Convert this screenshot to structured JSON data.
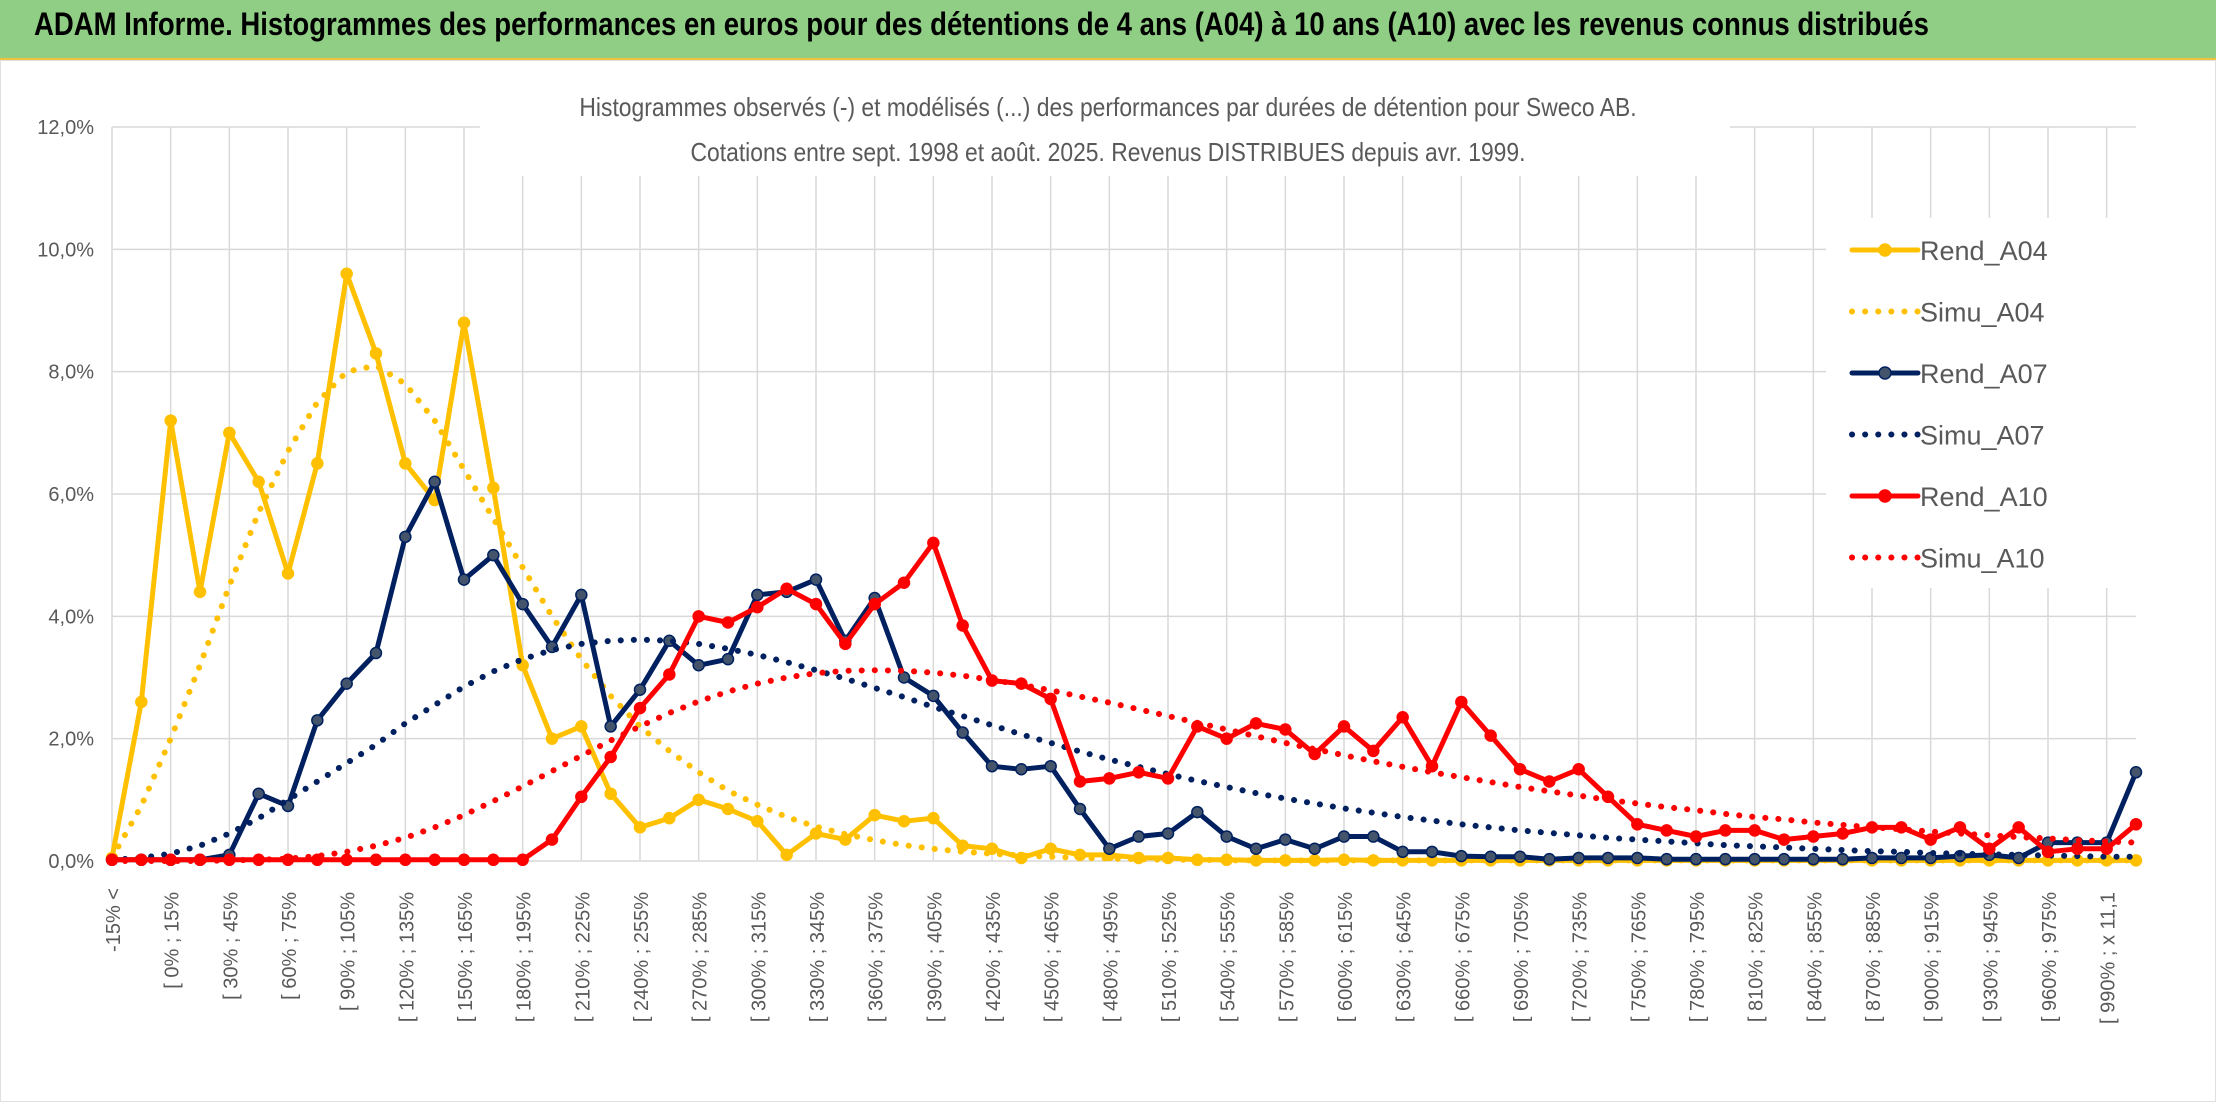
{
  "banner": {
    "title": "ADAM Informe. Histogrammes des performances en euros pour des détentions de 4 ans (A04) à 10 ans (A10) avec les revenus connus distribués"
  },
  "chart_data": {
    "type": "line",
    "title_lines": [
      "Histogrammes observés (-) et modélisés (...) des performances par durées de détention pour Sweco AB.",
      "Cotations entre sept. 1998 et août. 2025. Revenus DISTRIBUES depuis avr. 1999."
    ],
    "y_ticks": [
      "0,0%",
      "2,0%",
      "4,0%",
      "6,0%",
      "8,0%",
      "10,0%",
      "12,0%"
    ],
    "ylim": [
      0,
      12
    ],
    "grid": true,
    "legend_position": "right",
    "x_tick_labels": [
      "-15% <",
      "[ 0% ; 15%",
      "[ 30% ; 45%",
      "[ 60% ; 75%",
      "[ 90% ; 105%",
      "[ 120% ; 135%",
      "[ 150% ; 165%",
      "[ 180% ; 195%",
      "[ 210% ; 225%",
      "[ 240% ; 255%",
      "[ 270% ; 285%",
      "[ 300% ; 315%",
      "[ 330% ; 345%",
      "[ 360% ; 375%",
      "[ 390% ; 405%",
      "[ 420% ; 435%",
      "[ 450% ; 465%",
      "[ 480% ; 495%",
      "[ 510% ; 525%",
      "[ 540% ; 555%",
      "[ 570% ; 585%",
      "[ 600% ; 615%",
      "[ 630% ; 645%",
      "[ 660% ; 675%",
      "[ 690% ; 705%",
      "[ 720% ; 735%",
      "[ 750% ; 765%",
      "[ 780% ; 795%",
      "[ 810% ; 825%",
      "[ 840% ; 855%",
      "[ 870% ; 885%",
      "[ 900% ; 915%",
      "[ 930% ; 945%",
      "[ 960% ; 975%",
      "[ 990% ; x 11,1"
    ],
    "series": [
      {
        "name": "Rend_A04",
        "style": "solid",
        "color": "#FFC000",
        "values": [
          0.05,
          2.6,
          7.2,
          4.4,
          7.0,
          6.2,
          4.7,
          6.5,
          9.6,
          8.3,
          6.5,
          5.9,
          8.8,
          6.1,
          3.2,
          2.0,
          2.2,
          1.1,
          0.55,
          0.7,
          1.0,
          0.85,
          0.65,
          0.1,
          0.45,
          0.35,
          0.75,
          0.65,
          0.7,
          0.25,
          0.2,
          0.05,
          0.2,
          0.1,
          0.1,
          0.05,
          0.05,
          0.02,
          0.02,
          0.01,
          0.01,
          0.01,
          0.02,
          0.01,
          0.01,
          0.01,
          0.01,
          0.01,
          0.01,
          0.01,
          0.01,
          0.01,
          0.01,
          0.01,
          0.01,
          0.01,
          0.01,
          0.01,
          0.01,
          0.01,
          0.01,
          0.01,
          0.01,
          0.01,
          0.01,
          0.01,
          0.01,
          0.01,
          0.01,
          0.01
        ]
      },
      {
        "name": "Simu_A04",
        "style": "dotted",
        "color": "#FFC000",
        "values": [
          0.05,
          0.9,
          2.0,
          3.2,
          4.5,
          5.7,
          6.7,
          7.5,
          8.0,
          8.1,
          7.8,
          7.2,
          6.4,
          5.6,
          4.8,
          4.0,
          3.3,
          2.7,
          2.2,
          1.8,
          1.45,
          1.15,
          0.92,
          0.72,
          0.56,
          0.44,
          0.34,
          0.26,
          0.2,
          0.15,
          0.12,
          0.09,
          0.07,
          0.05,
          0.04,
          0.03,
          0.02,
          0.02,
          0.01,
          0.01,
          0.01,
          0.01,
          0.01,
          0.01,
          0.01,
          0.01,
          0.01,
          0.01,
          0.01,
          0.01,
          0.01,
          0.01,
          0.01,
          0.01,
          0.01,
          0.01,
          0.01,
          0.01,
          0.01,
          0.01,
          0.01,
          0.01,
          0.01,
          0.01,
          0.01,
          0.01,
          0.01,
          0.01,
          0.01,
          0.01
        ]
      },
      {
        "name": "Rend_A07",
        "style": "solid",
        "color": "#002060",
        "values": [
          0.02,
          0.02,
          0.02,
          0.02,
          0.1,
          1.1,
          0.9,
          2.3,
          2.9,
          3.4,
          5.3,
          6.2,
          4.6,
          5.0,
          4.2,
          3.5,
          4.35,
          2.2,
          2.8,
          3.6,
          3.2,
          3.3,
          4.35,
          4.4,
          4.6,
          3.6,
          4.3,
          3.0,
          2.7,
          2.1,
          1.55,
          1.5,
          1.55,
          0.85,
          0.2,
          0.4,
          0.45,
          0.8,
          0.4,
          0.2,
          0.35,
          0.2,
          0.4,
          0.4,
          0.15,
          0.15,
          0.08,
          0.07,
          0.07,
          0.03,
          0.05,
          0.05,
          0.05,
          0.03,
          0.03,
          0.03,
          0.03,
          0.03,
          0.03,
          0.03,
          0.05,
          0.05,
          0.05,
          0.08,
          0.1,
          0.05,
          0.3,
          0.3,
          0.3,
          1.45
        ]
      },
      {
        "name": "Simu_A07",
        "style": "dotted",
        "color": "#002060",
        "values": [
          0.02,
          0.05,
          0.12,
          0.25,
          0.45,
          0.7,
          1.0,
          1.3,
          1.6,
          1.9,
          2.25,
          2.55,
          2.85,
          3.1,
          3.3,
          3.45,
          3.55,
          3.6,
          3.62,
          3.6,
          3.55,
          3.47,
          3.37,
          3.25,
          3.12,
          2.98,
          2.83,
          2.68,
          2.52,
          2.37,
          2.22,
          2.07,
          1.93,
          1.79,
          1.66,
          1.54,
          1.42,
          1.31,
          1.21,
          1.11,
          1.02,
          0.94,
          0.86,
          0.79,
          0.72,
          0.66,
          0.6,
          0.55,
          0.5,
          0.46,
          0.42,
          0.38,
          0.35,
          0.32,
          0.29,
          0.26,
          0.24,
          0.22,
          0.2,
          0.18,
          0.16,
          0.15,
          0.13,
          0.12,
          0.11,
          0.1,
          0.09,
          0.08,
          0.07,
          0.07
        ]
      },
      {
        "name": "Rend_A10",
        "style": "solid",
        "color": "#FF0000",
        "values": [
          0.02,
          0.02,
          0.02,
          0.02,
          0.02,
          0.02,
          0.02,
          0.02,
          0.02,
          0.02,
          0.02,
          0.02,
          0.02,
          0.02,
          0.02,
          0.35,
          1.05,
          1.7,
          2.5,
          3.05,
          4.0,
          3.9,
          4.15,
          4.45,
          4.2,
          3.55,
          4.2,
          4.55,
          5.2,
          3.85,
          2.95,
          2.9,
          2.65,
          1.3,
          1.35,
          1.45,
          1.35,
          2.2,
          2.0,
          2.25,
          2.15,
          1.75,
          2.2,
          1.8,
          2.35,
          1.55,
          2.6,
          2.05,
          1.5,
          1.3,
          1.5,
          1.05,
          0.6,
          0.5,
          0.4,
          0.5,
          0.5,
          0.35,
          0.4,
          0.45,
          0.55,
          0.55,
          0.35,
          0.55,
          0.2,
          0.55,
          0.15,
          0.2,
          0.2,
          0.6
        ]
      },
      {
        "name": "Simu_A10",
        "style": "dotted",
        "color": "#FF0000",
        "values": [
          0.0,
          0.0,
          0.0,
          0.0,
          0.01,
          0.02,
          0.04,
          0.08,
          0.15,
          0.25,
          0.38,
          0.55,
          0.75,
          0.98,
          1.22,
          1.47,
          1.72,
          1.97,
          2.2,
          2.42,
          2.61,
          2.77,
          2.9,
          3.0,
          3.07,
          3.11,
          3.12,
          3.11,
          3.08,
          3.03,
          2.96,
          2.88,
          2.79,
          2.69,
          2.59,
          2.48,
          2.37,
          2.26,
          2.15,
          2.04,
          1.93,
          1.83,
          1.73,
          1.63,
          1.54,
          1.45,
          1.37,
          1.29,
          1.21,
          1.14,
          1.07,
          1.0,
          0.94,
          0.88,
          0.83,
          0.77,
          0.72,
          0.68,
          0.63,
          0.59,
          0.55,
          0.52,
          0.48,
          0.45,
          0.42,
          0.39,
          0.37,
          0.34,
          0.32,
          0.3
        ]
      }
    ]
  }
}
